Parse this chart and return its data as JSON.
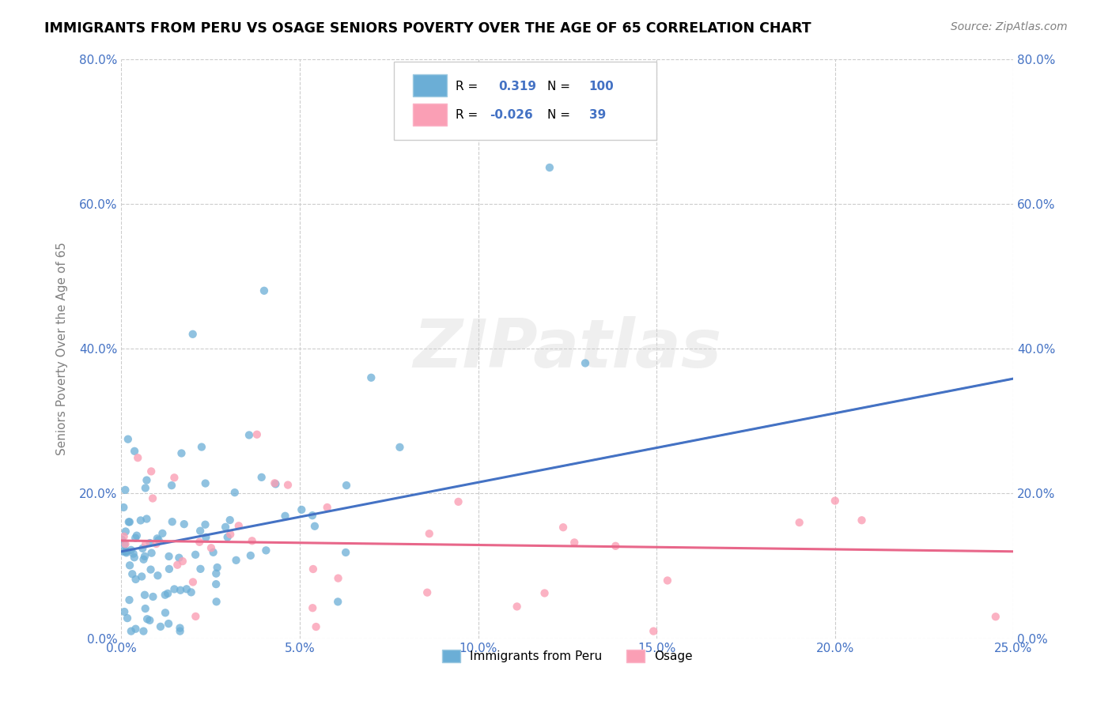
{
  "title": "IMMIGRANTS FROM PERU VS OSAGE SENIORS POVERTY OVER THE AGE OF 65 CORRELATION CHART",
  "source": "Source: ZipAtlas.com",
  "ylabel": "Seniors Poverty Over the Age of 65",
  "xlabel_ticks": [
    "0.0%",
    "5.0%",
    "10.0%",
    "15.0%",
    "20.0%",
    "25.0%"
  ],
  "xlabel_vals": [
    0.0,
    0.05,
    0.1,
    0.15,
    0.2,
    0.25
  ],
  "ylabel_ticks": [
    "0.0%",
    "20.0%",
    "40.0%",
    "60.0%",
    "80.0%"
  ],
  "ylabel_vals": [
    0.0,
    0.2,
    0.4,
    0.6,
    0.8
  ],
  "xlim": [
    0.0,
    0.25
  ],
  "ylim": [
    0.0,
    0.8
  ],
  "r_peru": 0.319,
  "n_peru": 100,
  "r_osage": -0.026,
  "n_osage": 39,
  "color_peru": "#6baed6",
  "color_osage": "#fa9fb5",
  "color_blue": "#4472c4",
  "color_pink": "#e8678a",
  "watermark": "ZIPatlas",
  "legend_labels": [
    "Immigrants from Peru",
    "Osage"
  ],
  "background_color": "#ffffff",
  "grid_color": "#cccccc"
}
